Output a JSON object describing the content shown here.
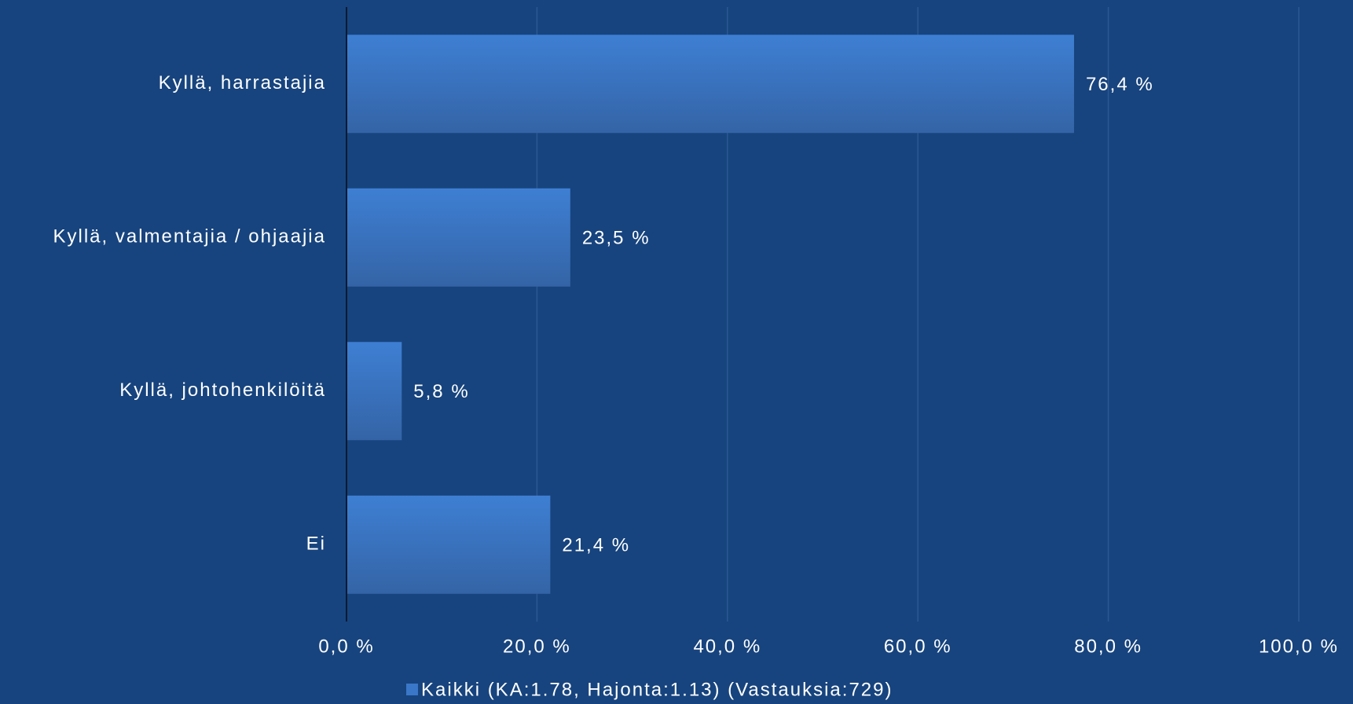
{
  "chart_data": {
    "type": "bar",
    "orientation": "horizontal",
    "categories": [
      "Kyllä, harrastajia",
      "Kyllä, valmentajia / ohjaajia",
      "Kyllä, johtohenkilöitä",
      "Ei"
    ],
    "series": [
      {
        "name": "Kaikki (KA:1.78, Hajonta:1.13) (Vastauksia:729)",
        "color": "#3a77c9",
        "values": [
          76.4,
          23.5,
          5.8,
          21.4
        ],
        "value_labels": [
          "76,4 %",
          "23,5 %",
          "5,8 %",
          "21,4 %"
        ]
      }
    ],
    "xlim": [
      0,
      100
    ],
    "xticks": [
      {
        "value": 0,
        "label": "0,0 %"
      },
      {
        "value": 20,
        "label": "20,0 %"
      },
      {
        "value": 40,
        "label": "40,0 %"
      },
      {
        "value": 60,
        "label": "60,0 %"
      },
      {
        "value": 80,
        "label": "80,0 %"
      },
      {
        "value": 100,
        "label": "100,0 %"
      }
    ],
    "grid": true,
    "legend": "bottom"
  }
}
